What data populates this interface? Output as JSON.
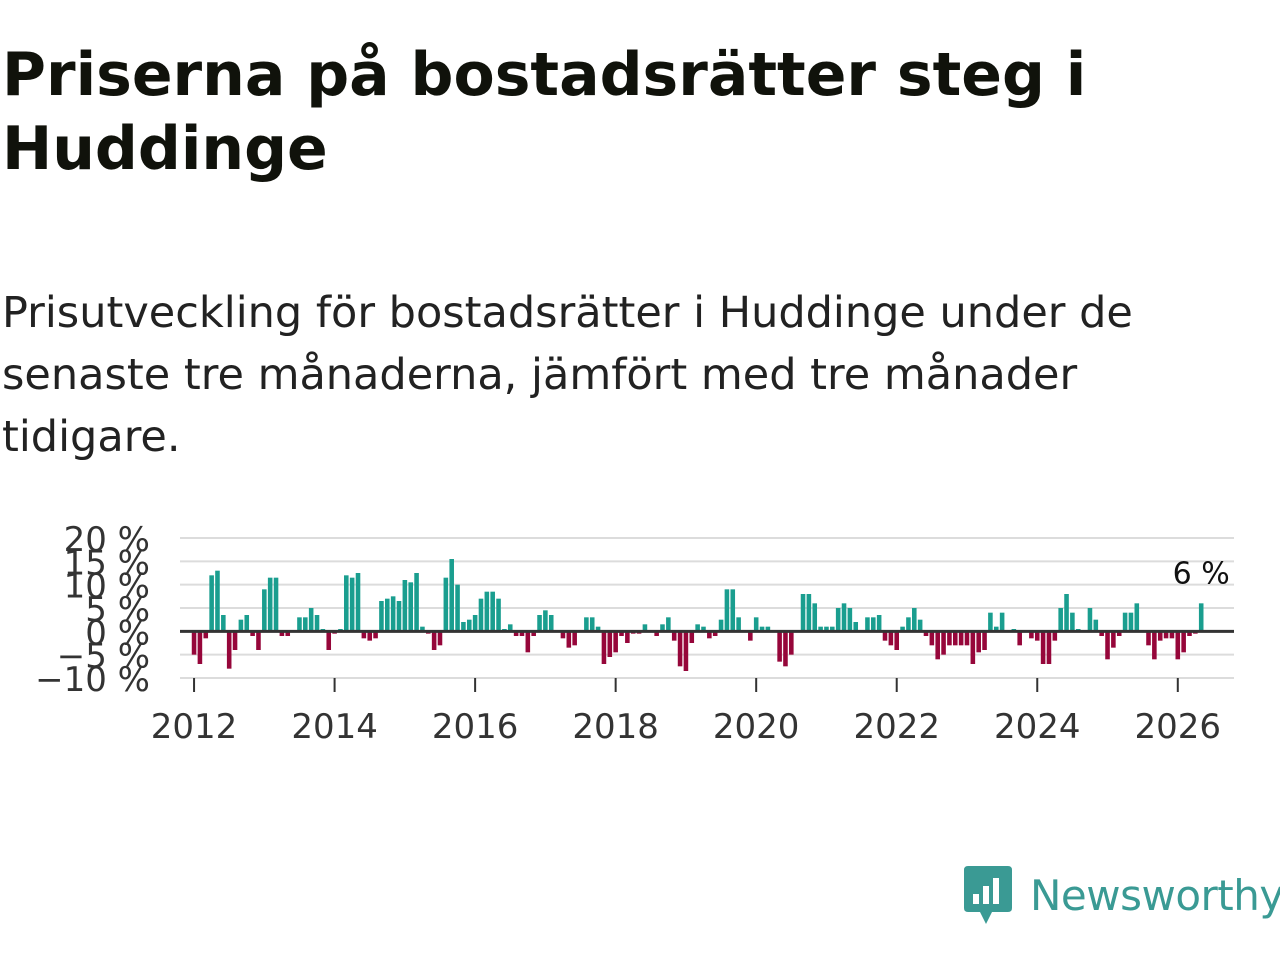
{
  "header": {
    "title": "Priserna på bostadsrätter steg i Huddinge",
    "subtitle": "Prisutveckling för bostadsrätter i Huddinge under de senaste tre månaderna, jämfört med tre månader tidigare."
  },
  "brand": {
    "name": "Newsworthy",
    "color": "#3a9a94",
    "icon": "newsworthy-logo-icon"
  },
  "colors": {
    "positive": "#1a9e8f",
    "negative": "#96063a",
    "grid": "#dcdcdc",
    "zero_line": "#333333",
    "text": "#333333"
  },
  "chart_data": {
    "type": "bar",
    "title": "Priserna på bostadsrätter steg i Huddinge",
    "xlabel": "",
    "ylabel": "",
    "ylim": [
      -10,
      20
    ],
    "yticks": [
      -10,
      -5,
      0,
      5,
      10,
      15,
      20
    ],
    "ytick_labels": [
      "−10 %",
      "−5 %",
      "0 %",
      "5 %",
      "10 %",
      "15 %",
      "20 %"
    ],
    "xlim": [
      2011.8,
      2026.8
    ],
    "xticks": [
      2012,
      2014,
      2016,
      2018,
      2020,
      2022,
      2024,
      2026
    ],
    "xtick_labels": [
      "2012",
      "2014",
      "2016",
      "2018",
      "2020",
      "2022",
      "2024",
      "2026"
    ],
    "x_start": 2012.0,
    "x_step": 0.0833333,
    "values": [
      -5,
      -7,
      -1.5,
      12,
      13,
      3.5,
      -8,
      -4,
      2.5,
      3.5,
      -1,
      -4,
      9,
      11.5,
      11.5,
      -1,
      -1,
      0,
      3,
      3,
      5,
      3.5,
      0.5,
      -4,
      -0.5,
      0.5,
      12,
      11.5,
      12.5,
      -1.5,
      -2,
      -1.5,
      6.5,
      7,
      7.5,
      6.5,
      11,
      10.5,
      12.5,
      1,
      -0.5,
      -4,
      -3,
      11.5,
      15.5,
      10,
      2,
      2.5,
      3.5,
      7,
      8.5,
      8.5,
      7,
      0.5,
      1.5,
      -1,
      -1,
      -4.5,
      -1,
      3.5,
      4.5,
      3.5,
      0,
      -1.5,
      -3.5,
      -3,
      0,
      3,
      3,
      1,
      -7,
      -5.5,
      -4.5,
      -1,
      -2.5,
      -0.5,
      -0.5,
      1.5,
      0,
      -1,
      1.5,
      3,
      -2,
      -7.5,
      -8.5,
      -2.5,
      1.5,
      1,
      -1.5,
      -1,
      2.5,
      9,
      9,
      3,
      0,
      -2,
      3,
      1,
      1,
      0,
      -6.5,
      -7.5,
      -5,
      0,
      8,
      8,
      6,
      1,
      1,
      1,
      5,
      6,
      5,
      2,
      0,
      3,
      3,
      3.5,
      -2,
      -3,
      -4,
      1,
      3,
      5,
      2.5,
      -1,
      -3,
      -6,
      -5,
      -3,
      -3,
      -3,
      -3,
      -7,
      -4.5,
      -4,
      4,
      1,
      4,
      0,
      0.5,
      -3,
      0,
      -1.5,
      -2,
      -7,
      -7,
      -2,
      5,
      8,
      4,
      0.5,
      0,
      5,
      2.5,
      -1,
      -6,
      -3.5,
      -1,
      4,
      4,
      6,
      0,
      -3,
      -6,
      -2,
      -1.5,
      -1.5,
      -6,
      -4.5,
      -1,
      -0.5,
      6
    ],
    "annotation": "6 %"
  }
}
